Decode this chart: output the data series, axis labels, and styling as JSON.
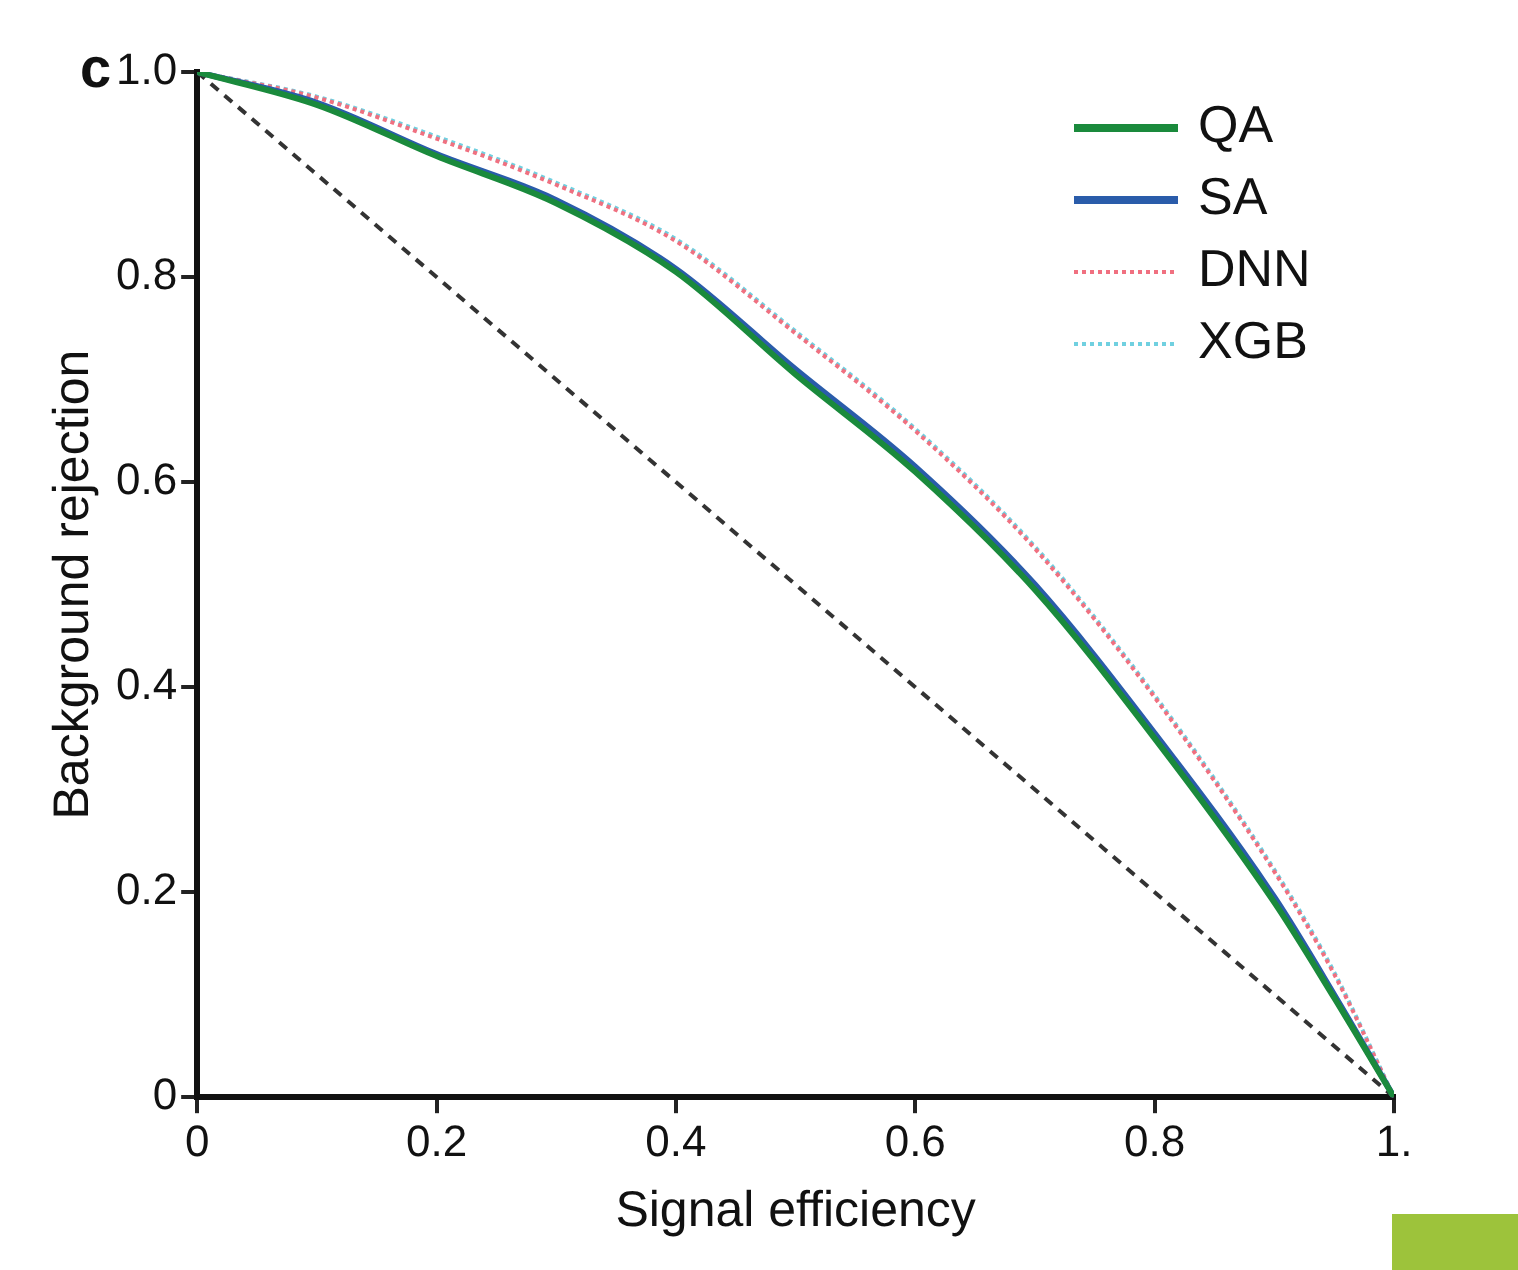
{
  "chart_data": {
    "type": "line",
    "xlabel": "Signal efficiency",
    "ylabel": "Background rejection",
    "annotations": [
      "c"
    ],
    "x": [
      0,
      0.1,
      0.2,
      0.3,
      0.4,
      0.5,
      0.6,
      0.7,
      0.8,
      0.9,
      0.95,
      1
    ],
    "series": [
      {
        "name": "QA",
        "color": "#1a8a3c",
        "line_style": "solid",
        "values": [
          1,
          0.968,
          0.918,
          0.872,
          0.805,
          0.705,
          0.61,
          0.495,
          0.35,
          0.19,
          0.097,
          0
        ]
      },
      {
        "name": "SA",
        "color": "#2a5caa",
        "line_style": "solid",
        "values": [
          1,
          0.97,
          0.92,
          0.875,
          0.808,
          0.71,
          0.615,
          0.5,
          0.355,
          0.195,
          0.1,
          0
        ]
      },
      {
        "name": "DNN",
        "color": "#f07080",
        "line_style": "dotted",
        "values": [
          1,
          0.975,
          0.935,
          0.89,
          0.835,
          0.745,
          0.65,
          0.535,
          0.39,
          0.22,
          0.12,
          0
        ]
      },
      {
        "name": "XGB",
        "color": "#70d0e0",
        "line_style": "dotted",
        "values": [
          1,
          0.976,
          0.937,
          0.892,
          0.837,
          0.747,
          0.652,
          0.537,
          0.392,
          0.222,
          0.122,
          0
        ]
      },
      {
        "color": "#333333",
        "line_style": "dashed",
        "x": [
          0,
          1
        ],
        "values": [
          1,
          0
        ]
      }
    ],
    "xlim": [
      0,
      1
    ],
    "xticks": [
      0,
      0.2,
      0.4,
      0.6,
      0.8,
      {
        "value": 1,
        "label": "1."
      }
    ],
    "ylim": [
      0,
      1
    ],
    "yticks": [
      0,
      0.2,
      0.4,
      0.6,
      0.8,
      {
        "value": 1,
        "label": "1.0"
      }
    ],
    "grid": false,
    "legend": "top right",
    "marker": "none"
  }
}
